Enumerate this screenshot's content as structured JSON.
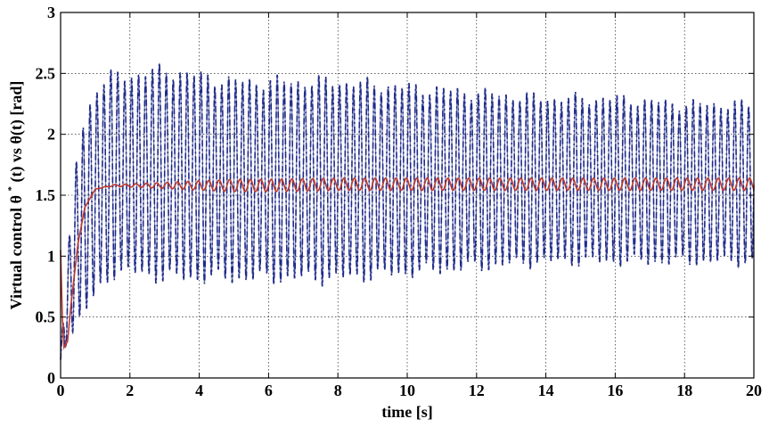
{
  "chart_data": {
    "type": "line",
    "title": "",
    "xlabel": "time [s]",
    "ylabel": {
      "prefix": "Virtual control θ",
      "superscript": "*",
      "suffix": "(t) vs θ(t) [rad]"
    },
    "xlim": [
      0,
      20
    ],
    "ylim": [
      0,
      3
    ],
    "x_ticks": [
      "0",
      "2",
      "4",
      "6",
      "8",
      "10",
      "12",
      "14",
      "16",
      "18",
      "20"
    ],
    "y_ticks": [
      "0",
      "0.5",
      "1",
      "1.5",
      "2",
      "2.5",
      "3"
    ],
    "grid": true,
    "series": [
      {
        "style": "dash-dot",
        "color": "#1f2a8a",
        "description_note": "rapidly oscillating signal",
        "envelope": {
          "x": [
            0,
            0.2,
            0.5,
            1,
            1.5,
            2,
            3,
            4,
            5,
            6,
            8,
            10,
            12,
            14,
            16,
            18,
            20
          ],
          "upper": [
            0.2,
            1.0,
            2.0,
            2.45,
            2.55,
            2.55,
            2.6,
            2.55,
            2.5,
            2.5,
            2.5,
            2.45,
            2.4,
            2.35,
            2.35,
            2.3,
            2.3
          ],
          "lower": [
            0.1,
            0.3,
            0.4,
            0.6,
            0.8,
            0.8,
            0.75,
            0.75,
            0.75,
            0.75,
            0.75,
            0.8,
            0.85,
            0.9,
            0.9,
            0.9,
            0.9
          ]
        },
        "oscillation_period_s": 0.2
      },
      {
        "style": "solid",
        "color": "#c0392b",
        "x": [
          0,
          0.05,
          0.1,
          0.2,
          0.3,
          0.5,
          0.7,
          1.0,
          1.5,
          2,
          3,
          4,
          6,
          8,
          10,
          12,
          14,
          16,
          18,
          20
        ],
        "values": [
          1.05,
          0.5,
          0.25,
          0.3,
          0.6,
          1.1,
          1.4,
          1.55,
          1.58,
          1.58,
          1.58,
          1.58,
          1.58,
          1.59,
          1.59,
          1.59,
          1.59,
          1.59,
          1.59,
          1.59
        ],
        "ripple_amplitude": 0.05,
        "ripple_period_s": 0.3
      }
    ]
  }
}
